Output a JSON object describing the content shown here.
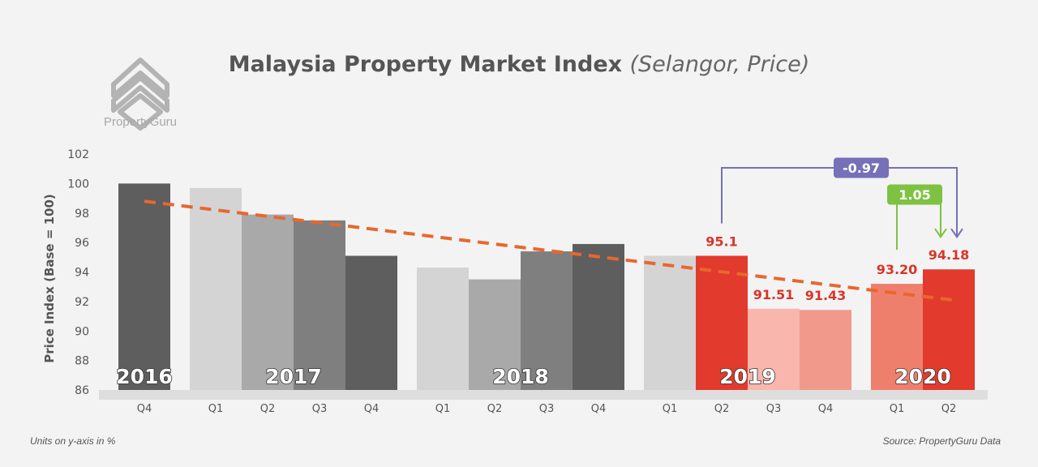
{
  "brand": {
    "name": "PropertyGuru"
  },
  "chart_data": {
    "type": "bar",
    "title": "Malaysia Property Market Index",
    "subtitle": "(Selangor, Price)",
    "ylabel": "Price Index (Base = 100)",
    "ylim": [
      86,
      102
    ],
    "yticks": [
      86,
      88,
      90,
      92,
      94,
      96,
      98,
      100,
      102
    ],
    "groups": [
      {
        "year": "2016",
        "bars": [
          {
            "quarter": "Q4",
            "value": 100.0,
            "color": "#5e5e5e"
          }
        ]
      },
      {
        "year": "2017",
        "bars": [
          {
            "quarter": "Q1",
            "value": 99.7,
            "color": "#d4d4d4"
          },
          {
            "quarter": "Q2",
            "value": 97.9,
            "color": "#a9a9a9"
          },
          {
            "quarter": "Q3",
            "value": 97.5,
            "color": "#7f7f7f"
          },
          {
            "quarter": "Q4",
            "value": 95.1,
            "color": "#5e5e5e"
          }
        ]
      },
      {
        "year": "2018",
        "bars": [
          {
            "quarter": "Q1",
            "value": 94.3,
            "color": "#d4d4d4"
          },
          {
            "quarter": "Q2",
            "value": 93.5,
            "color": "#a9a9a9"
          },
          {
            "quarter": "Q3",
            "value": 95.4,
            "color": "#7f7f7f"
          },
          {
            "quarter": "Q4",
            "value": 95.9,
            "color": "#5e5e5e"
          }
        ]
      },
      {
        "year": "2019",
        "bars": [
          {
            "quarter": "Q1",
            "value": 95.1,
            "color": "#d4d4d4"
          },
          {
            "quarter": "Q2",
            "value": 95.1,
            "color": "#e23a2c",
            "label": "95.1"
          },
          {
            "quarter": "Q3",
            "value": 91.51,
            "color": "#f8b6ac",
            "label": "91.51"
          },
          {
            "quarter": "Q4",
            "value": 91.43,
            "color": "#f19a8c",
            "label": "91.43"
          }
        ]
      },
      {
        "year": "2020",
        "bars": [
          {
            "quarter": "Q1",
            "value": 93.2,
            "color": "#ef7f6d",
            "label": "93.20"
          },
          {
            "quarter": "Q2",
            "value": 94.18,
            "color": "#e23a2c",
            "label": "94.18"
          }
        ]
      }
    ],
    "trendline": {
      "start": 98.8,
      "end": 92.1,
      "color": "#e8672f"
    },
    "annotations": [
      {
        "text": "-0.97",
        "from": "2019 Q2",
        "to": "2020 Q2",
        "color": "#7570b7"
      },
      {
        "text": "1.05",
        "from": "2020 Q1",
        "to": "2020 Q2",
        "color": "#7ec242"
      }
    ],
    "label_color": "#d9342a"
  },
  "footer": {
    "units_note": "Units on y-axis in %",
    "source": "Source: PropertyGuru Data"
  }
}
